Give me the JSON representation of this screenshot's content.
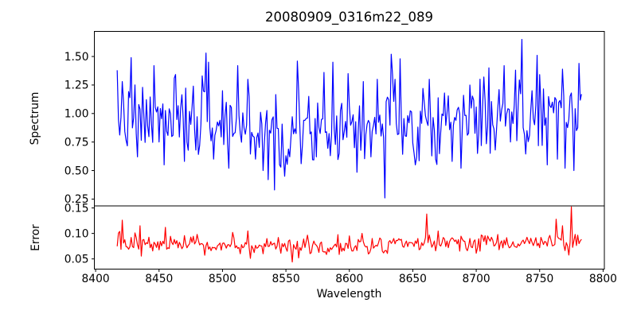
{
  "figure": {
    "background": "#ffffff",
    "frame_color": "#000000"
  },
  "chart_data": {
    "type": "line",
    "title": "20080909_0316m22_089",
    "xlabel": "Wavelength",
    "grid": false,
    "legend": null,
    "xlim": [
      8399,
      8801
    ],
    "xticks": [
      8400,
      8450,
      8500,
      8550,
      8600,
      8650,
      8700,
      8750,
      8800
    ],
    "xtick_labels": [
      "8400",
      "8450",
      "8500",
      "8550",
      "8600",
      "8650",
      "8700",
      "8750",
      "8800"
    ],
    "panels": [
      {
        "name": "spectrum",
        "ylabel": "Spectrum",
        "ylim": [
          0.19,
          1.72
        ],
        "yticks": [
          0.25,
          0.5,
          0.75,
          1.0,
          1.25,
          1.5
        ],
        "ytick_labels": [
          "0.25",
          "0.50",
          "0.75",
          "1.00",
          "1.25",
          "1.50"
        ],
        "series": {
          "name": "spectrum-flux",
          "color": "#0000ff",
          "line_width": 1.2,
          "x_start": 8417,
          "x_end": 8783,
          "x_step": 1,
          "seed": 7,
          "baseline": 0.93,
          "baseline_wave_amp": 0.05,
          "baseline_wave_period": 366,
          "baseline_phase": 2.515,
          "noise_sigma": 0.155,
          "noise_clip": 0.42,
          "value_clip": [
            0.21,
            1.7
          ],
          "keypoints": [
            [
              8421,
              1.28
            ],
            [
              8428,
              1.49
            ],
            [
              8433,
              0.62
            ],
            [
              8437,
              1.23
            ],
            [
              8446,
              1.42
            ],
            [
              8450,
              0.75
            ],
            [
              8454,
              0.55
            ],
            [
              8462,
              1.31
            ],
            [
              8470,
              0.58
            ],
            [
              8477,
              1.24
            ],
            [
              8484,
              1.33
            ],
            [
              8487,
              1.53
            ],
            [
              8489,
              1.45
            ],
            [
              8493,
              0.6
            ],
            [
              8500,
              1.2
            ],
            [
              8505,
              0.52
            ],
            [
              8512,
              1.42
            ],
            [
              8520,
              1.3
            ],
            [
              8526,
              0.6
            ],
            [
              8532,
              0.5
            ],
            [
              8536,
              0.42
            ],
            [
              8541,
              0.33
            ],
            [
              8545,
              0.55
            ],
            [
              8549,
              0.45
            ],
            [
              8553,
              0.62
            ],
            [
              8559,
              1.46
            ],
            [
              8562,
              0.56
            ],
            [
              8568,
              1.15
            ],
            [
              8574,
              0.62
            ],
            [
              8580,
              1.36
            ],
            [
              8587,
              1.45
            ],
            [
              8592,
              0.65
            ],
            [
              8599,
              1.35
            ],
            [
              8604,
              0.7
            ],
            [
              8611,
              1.28
            ],
            [
              8617,
              0.62
            ],
            [
              8622,
              1.3
            ],
            [
              8628,
              0.26
            ],
            [
              8633,
              1.52
            ],
            [
              8636,
              1.3
            ],
            [
              8640,
              1.48
            ],
            [
              8645,
              0.8
            ],
            [
              8652,
              0.55
            ],
            [
              8658,
              1.22
            ],
            [
              8663,
              1.3
            ],
            [
              8668,
              0.6
            ],
            [
              8675,
              1.18
            ],
            [
              8681,
              0.58
            ],
            [
              8688,
              0.52
            ],
            [
              8695,
              1.25
            ],
            [
              8701,
              0.65
            ],
            [
              8706,
              1.32
            ],
            [
              8710,
              1.4
            ],
            [
              8715,
              0.68
            ],
            [
              8722,
              1.42
            ],
            [
              8727,
              0.75
            ],
            [
              8731,
              1.38
            ],
            [
              8736,
              1.65
            ],
            [
              8740,
              0.85
            ],
            [
              8744,
              1.2
            ],
            [
              8748,
              1.51
            ],
            [
              8752,
              0.72
            ],
            [
              8756,
              0.55
            ],
            [
              8760,
              1.1
            ],
            [
              8764,
              0.6
            ],
            [
              8767,
              1.05
            ],
            [
              8770,
              0.52
            ],
            [
              8773,
              0.95
            ],
            [
              8775,
              1.18
            ],
            [
              8777,
              0.5
            ],
            [
              8779,
              0.85
            ],
            [
              8781,
              1.44
            ]
          ]
        }
      },
      {
        "name": "error",
        "ylabel": "Error",
        "ylim": [
          0.03,
          0.154
        ],
        "yticks": [
          0.05,
          0.1,
          0.15
        ],
        "ytick_labels": [
          "0.05",
          "0.10",
          "0.15"
        ],
        "series": {
          "name": "spectrum-error",
          "color": "#ff0000",
          "line_width": 1.2,
          "x_start": 8417,
          "x_end": 8783,
          "x_step": 1,
          "seed": 13,
          "baseline": 0.078,
          "baseline_wave_amp": 0.005,
          "baseline_wave_period": 366,
          "baseline_phase": 2.515,
          "noise_sigma": 0.009,
          "noise_clip": 0.024,
          "value_clip": [
            0.033,
            0.153
          ],
          "keypoints": [
            [
              8421,
              0.126
            ],
            [
              8428,
              0.092
            ],
            [
              8435,
              0.115
            ],
            [
              8443,
              0.072
            ],
            [
              8455,
              0.112
            ],
            [
              8468,
              0.07
            ],
            [
              8480,
              0.098
            ],
            [
              8495,
              0.068
            ],
            [
              8508,
              0.102
            ],
            [
              8520,
              0.105
            ],
            [
              8533,
              0.08
            ],
            [
              8544,
              0.092
            ],
            [
              8551,
              0.065
            ],
            [
              8555,
              0.044
            ],
            [
              8560,
              0.052
            ],
            [
              8572,
              0.085
            ],
            [
              8585,
              0.072
            ],
            [
              8598,
              0.08
            ],
            [
              8610,
              0.1
            ],
            [
              8622,
              0.075
            ],
            [
              8635,
              0.09
            ],
            [
              8648,
              0.082
            ],
            [
              8655,
              0.068
            ],
            [
              8661,
              0.138
            ],
            [
              8666,
              0.078
            ],
            [
              8678,
              0.072
            ],
            [
              8690,
              0.085
            ],
            [
              8705,
              0.095
            ],
            [
              8718,
              0.068
            ],
            [
              8730,
              0.075
            ],
            [
              8742,
              0.08
            ],
            [
              8750,
              0.072
            ],
            [
              8757,
              0.09
            ],
            [
              8763,
              0.128
            ],
            [
              8768,
              0.115
            ],
            [
              8771,
              0.082
            ],
            [
              8775,
              0.152
            ],
            [
              8778,
              0.098
            ],
            [
              8781,
              0.08
            ]
          ]
        }
      }
    ]
  }
}
